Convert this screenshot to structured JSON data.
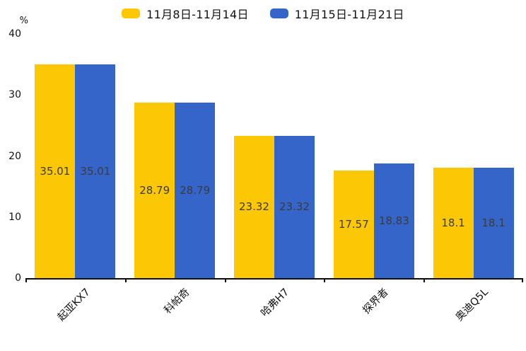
{
  "chart_data": {
    "type": "bar",
    "title": "",
    "categories": [
      "起亚KX7",
      "科帕奇",
      "哈弗H7",
      "探界者",
      "奥迪Q5L"
    ],
    "series": [
      {
        "name": "11月8日-11月14日",
        "color": "#FCC806",
        "values": [
          35.01,
          28.79,
          23.32,
          17.57,
          18.1
        ]
      },
      {
        "name": "11月15日-11月21日",
        "color": "#3565C8",
        "values": [
          35.01,
          28.79,
          23.32,
          18.83,
          18.1
        ]
      }
    ],
    "value_labels": [
      [
        "35.01",
        "28.79",
        "23.32",
        "17.57",
        "18.1"
      ],
      [
        "35.01",
        "28.79",
        "23.32",
        "18.83",
        "18.1"
      ]
    ],
    "xlabel": "",
    "ylabel": "%",
    "ylim": [
      0,
      40
    ],
    "yticks": [
      "0",
      "10",
      "20",
      "30",
      "40"
    ],
    "grid": false,
    "legend_position": "top",
    "value_label_color": "#3b3b3b",
    "axis_color": "#0d0d0d",
    "background_color": "#ffffff"
  }
}
